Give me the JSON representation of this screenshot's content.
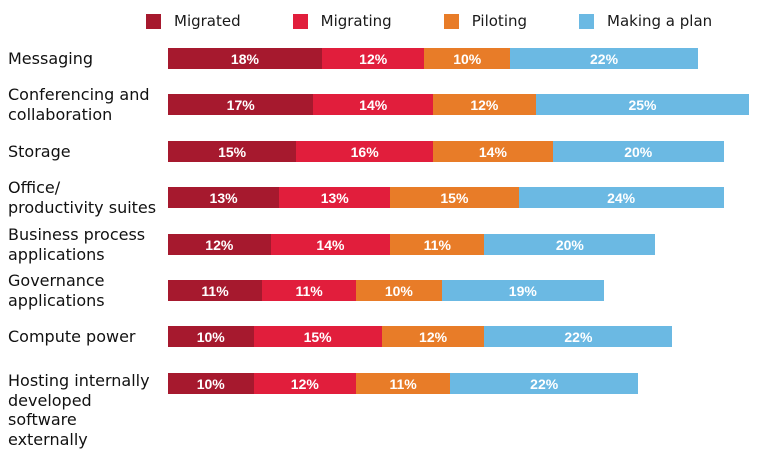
{
  "legend": [
    {
      "label": "Migrated",
      "color": "#A6192E"
    },
    {
      "label": "Migrating",
      "color": "#E11E3C"
    },
    {
      "label": "Piloting",
      "color": "#E87C28"
    },
    {
      "label": "Making a plan",
      "color": "#6BB9E3"
    }
  ],
  "colors": {
    "migrated": "#A6192E",
    "migrating": "#E11E3C",
    "piloting": "#E87C28",
    "making_a_plan": "#6BB9E3",
    "label_text": "#111111",
    "value_text": "#ffffff"
  },
  "chart_data": {
    "type": "bar",
    "stacked": true,
    "orientation": "horizontal",
    "unit": "%",
    "legend_position": "top",
    "grid": false,
    "xlim": [
      0,
      70
    ],
    "title": "",
    "xlabel": "",
    "ylabel": "",
    "categories": [
      "Messaging",
      "Conferencing and\ncollaboration",
      "Storage",
      "Office/\nproductivity suites",
      "Business process\napplications",
      "Governance\napplications",
      "Compute power",
      "Hosting internally\ndeveloped software\nexternally"
    ],
    "series": [
      {
        "name": "Migrated",
        "color": "#A6192E",
        "values": [
          18,
          17,
          15,
          13,
          12,
          11,
          10,
          10
        ]
      },
      {
        "name": "Migrating",
        "color": "#E11E3C",
        "values": [
          12,
          14,
          16,
          13,
          14,
          11,
          15,
          12
        ]
      },
      {
        "name": "Piloting",
        "color": "#E87C28",
        "values": [
          10,
          12,
          14,
          15,
          11,
          10,
          12,
          11
        ]
      },
      {
        "name": "Making a plan",
        "color": "#6BB9E3",
        "values": [
          22,
          25,
          20,
          24,
          20,
          19,
          22,
          22
        ]
      }
    ],
    "totals": [
      62,
      68,
      65,
      65,
      57,
      51,
      59,
      55
    ]
  }
}
